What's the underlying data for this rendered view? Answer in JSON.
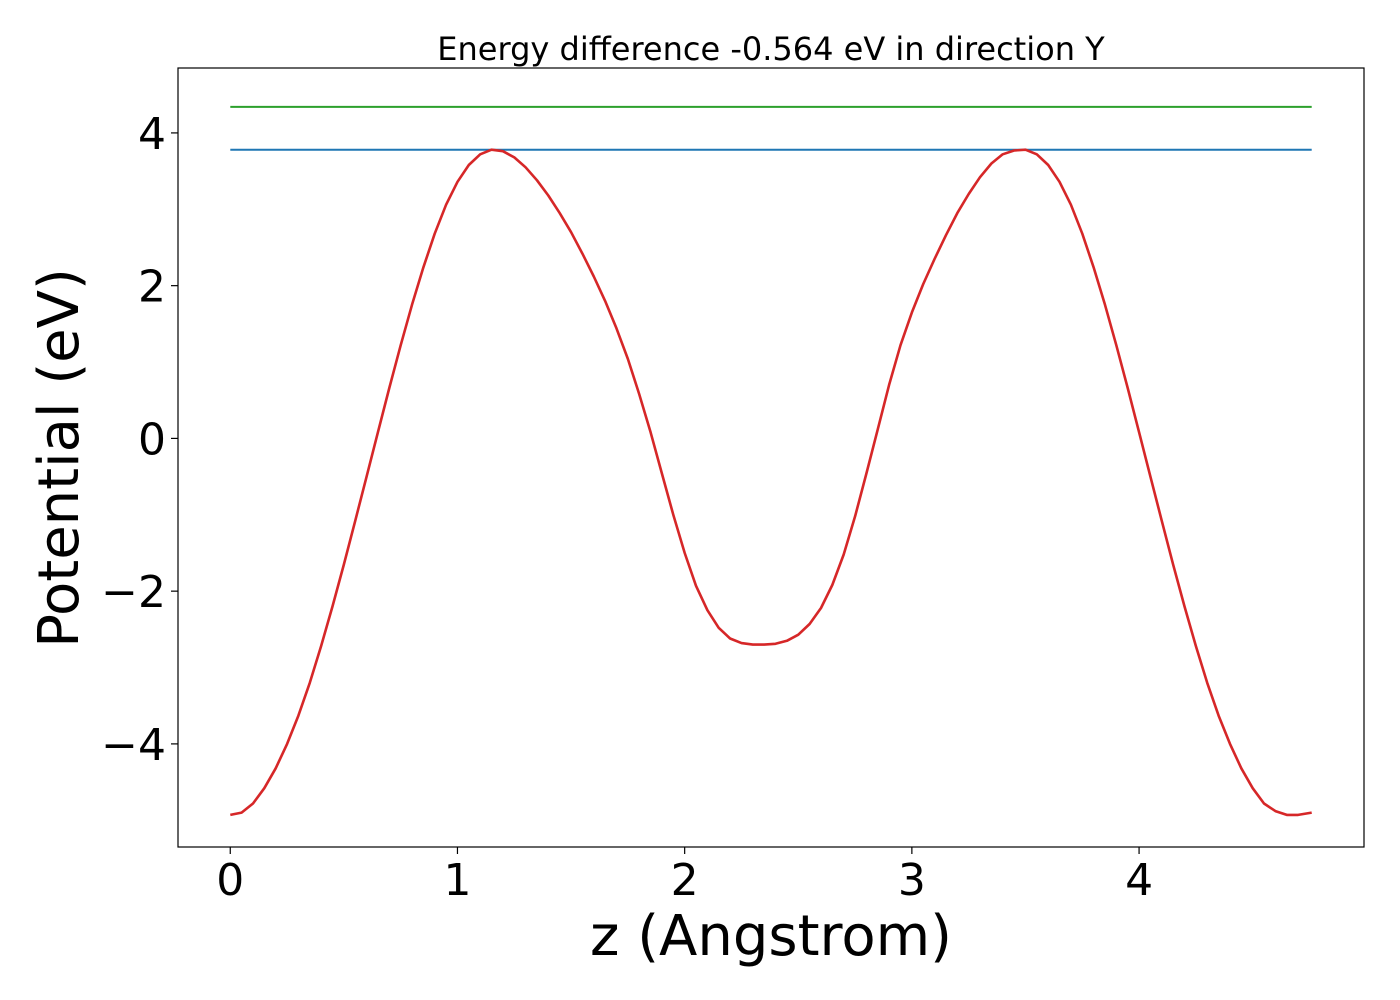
{
  "chart_data": {
    "type": "line",
    "title": "Energy difference -0.564 eV in direction Y",
    "xlabel": "z (Angstrom)",
    "ylabel": "Potential (eV)",
    "xlim": [
      -0.23,
      4.99
    ],
    "ylim": [
      -5.35,
      4.85
    ],
    "xticks": [
      0,
      1,
      2,
      3,
      4
    ],
    "yticks": [
      -4,
      -2,
      0,
      2,
      4
    ],
    "xtick_labels": [
      "0",
      "1",
      "2",
      "3",
      "4"
    ],
    "ytick_labels": [
      "−4",
      "−2",
      "0",
      "2",
      "4"
    ],
    "grid": false,
    "series": [
      {
        "color": "#2ca02c",
        "x": [
          0,
          4.76
        ],
        "y": [
          4.34,
          4.34
        ]
      },
      {
        "color": "#1f77b4",
        "x": [
          0,
          4.76
        ],
        "y": [
          3.78,
          3.78
        ]
      },
      {
        "color": "#d62728",
        "x": [
          0,
          0.05,
          0.1,
          0.15,
          0.2,
          0.25,
          0.3,
          0.35,
          0.4,
          0.45,
          0.5,
          0.55,
          0.6,
          0.65,
          0.7,
          0.75,
          0.8,
          0.85,
          0.9,
          0.95,
          1.0,
          1.05,
          1.1,
          1.15,
          1.2,
          1.25,
          1.3,
          1.35,
          1.4,
          1.45,
          1.5,
          1.55,
          1.6,
          1.65,
          1.7,
          1.75,
          1.8,
          1.85,
          1.9,
          1.95,
          2.0,
          2.05,
          2.1,
          2.15,
          2.2,
          2.25,
          2.3,
          2.35,
          2.4,
          2.45,
          2.5,
          2.55,
          2.6,
          2.65,
          2.7,
          2.75,
          2.8,
          2.85,
          2.9,
          2.95,
          3.0,
          3.05,
          3.1,
          3.15,
          3.2,
          3.25,
          3.3,
          3.35,
          3.4,
          3.45,
          3.5,
          3.55,
          3.6,
          3.65,
          3.7,
          3.75,
          3.8,
          3.85,
          3.9,
          3.95,
          4.0,
          4.05,
          4.1,
          4.15,
          4.2,
          4.25,
          4.3,
          4.35,
          4.4,
          4.45,
          4.5,
          4.55,
          4.6,
          4.65,
          4.7,
          4.76
        ],
        "y": [
          -4.93,
          -4.9,
          -4.78,
          -4.58,
          -4.32,
          -4.0,
          -3.63,
          -3.2,
          -2.72,
          -2.2,
          -1.65,
          -1.08,
          -0.5,
          0.08,
          0.66,
          1.22,
          1.75,
          2.24,
          2.68,
          3.06,
          3.36,
          3.58,
          3.72,
          3.78,
          3.76,
          3.68,
          3.55,
          3.38,
          3.18,
          2.95,
          2.7,
          2.42,
          2.12,
          1.8,
          1.44,
          1.04,
          0.58,
          0.08,
          -0.46,
          -1.0,
          -1.5,
          -1.93,
          -2.25,
          -2.48,
          -2.62,
          -2.68,
          -2.7,
          -2.7,
          -2.69,
          -2.65,
          -2.57,
          -2.43,
          -2.22,
          -1.92,
          -1.52,
          -1.02,
          -0.46,
          0.12,
          0.7,
          1.22,
          1.65,
          2.02,
          2.35,
          2.66,
          2.95,
          3.2,
          3.42,
          3.6,
          3.72,
          3.77,
          3.78,
          3.72,
          3.58,
          3.36,
          3.06,
          2.68,
          2.24,
          1.75,
          1.22,
          0.66,
          0.08,
          -0.5,
          -1.08,
          -1.65,
          -2.2,
          -2.72,
          -3.2,
          -3.63,
          -4.0,
          -4.32,
          -4.58,
          -4.78,
          -4.88,
          -4.93,
          -4.93,
          -4.9
        ]
      }
    ]
  }
}
